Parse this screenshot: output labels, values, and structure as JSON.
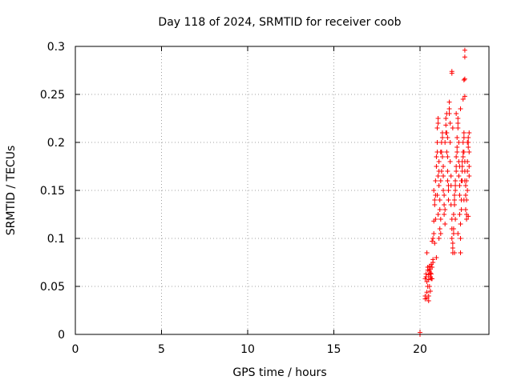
{
  "chart_data": {
    "type": "scatter",
    "title": "Day 118 of 2024, SRMTID for receiver coob",
    "xlabel": "GPS time / hours",
    "ylabel": "SRMTID / TECUs",
    "xlim": [
      0,
      24
    ],
    "ylim": [
      0,
      0.3
    ],
    "x_ticks": [
      0,
      5,
      10,
      15,
      20
    ],
    "x_tick_labels": [
      "0",
      "5",
      "10",
      "15",
      "20"
    ],
    "y_ticks": [
      0,
      0.05,
      0.1,
      0.15,
      0.2,
      0.25,
      0.3
    ],
    "y_tick_labels": [
      "0",
      "0.05",
      "0.1",
      "0.15",
      "0.2",
      "0.25",
      "0.3"
    ],
    "grid": true,
    "marker": "plus",
    "color": "#ff0000",
    "points": [
      [
        20.0,
        0.0
      ],
      [
        20.0,
        0.002
      ],
      [
        20.3,
        0.037
      ],
      [
        20.3,
        0.04
      ],
      [
        20.3,
        0.058
      ],
      [
        20.35,
        0.06
      ],
      [
        20.35,
        0.063
      ],
      [
        20.4,
        0.038
      ],
      [
        20.4,
        0.044
      ],
      [
        20.4,
        0.055
      ],
      [
        20.45,
        0.05
      ],
      [
        20.45,
        0.067
      ],
      [
        20.45,
        0.07
      ],
      [
        20.5,
        0.035
      ],
      [
        20.5,
        0.04
      ],
      [
        20.5,
        0.057
      ],
      [
        20.5,
        0.062
      ],
      [
        20.55,
        0.05
      ],
      [
        20.55,
        0.066
      ],
      [
        20.55,
        0.071
      ],
      [
        20.6,
        0.045
      ],
      [
        20.6,
        0.06
      ],
      [
        20.6,
        0.064
      ],
      [
        20.65,
        0.058
      ],
      [
        20.65,
        0.063
      ],
      [
        20.4,
        0.085
      ],
      [
        20.7,
        0.07
      ],
      [
        20.75,
        0.075
      ],
      [
        20.75,
        0.078
      ],
      [
        20.7,
        0.097
      ],
      [
        20.75,
        0.1
      ],
      [
        20.8,
        0.105
      ],
      [
        20.8,
        0.118
      ],
      [
        20.85,
        0.135
      ],
      [
        20.85,
        0.14
      ],
      [
        20.8,
        0.15
      ],
      [
        20.9,
        0.12
      ],
      [
        20.9,
        0.145
      ],
      [
        20.9,
        0.16
      ],
      [
        20.95,
        0.175
      ],
      [
        20.95,
        0.185
      ],
      [
        21.0,
        0.19
      ],
      [
        21.0,
        0.2
      ],
      [
        21.0,
        0.215
      ],
      [
        21.05,
        0.22
      ],
      [
        21.05,
        0.225
      ],
      [
        21.05,
        0.165
      ],
      [
        21.1,
        0.17
      ],
      [
        21.1,
        0.18
      ],
      [
        21.1,
        0.155
      ],
      [
        21.15,
        0.13
      ],
      [
        21.15,
        0.14
      ],
      [
        21.15,
        0.11
      ],
      [
        21.2,
        0.105
      ],
      [
        21.2,
        0.12
      ],
      [
        21.2,
        0.16
      ],
      [
        21.25,
        0.17
      ],
      [
        21.25,
        0.19
      ],
      [
        21.25,
        0.2
      ],
      [
        21.3,
        0.205
      ],
      [
        21.3,
        0.21
      ],
      [
        21.3,
        0.185
      ],
      [
        21.35,
        0.175
      ],
      [
        21.35,
        0.165
      ],
      [
        21.35,
        0.15
      ],
      [
        21.4,
        0.135
      ],
      [
        21.4,
        0.145
      ],
      [
        21.4,
        0.125
      ],
      [
        21.45,
        0.115
      ],
      [
        21.45,
        0.13
      ],
      [
        21.45,
        0.2
      ],
      [
        21.5,
        0.21
      ],
      [
        21.5,
        0.218
      ],
      [
        21.5,
        0.225
      ],
      [
        21.55,
        0.23
      ],
      [
        21.55,
        0.21
      ],
      [
        21.55,
        0.19
      ],
      [
        21.6,
        0.185
      ],
      [
        21.6,
        0.17
      ],
      [
        21.6,
        0.16
      ],
      [
        21.65,
        0.15
      ],
      [
        21.65,
        0.14
      ],
      [
        21.65,
        0.155
      ],
      [
        21.7,
        0.23
      ],
      [
        21.7,
        0.235
      ],
      [
        21.7,
        0.242
      ],
      [
        21.75,
        0.22
      ],
      [
        21.75,
        0.2
      ],
      [
        21.75,
        0.18
      ],
      [
        21.8,
        0.165
      ],
      [
        21.8,
        0.155
      ],
      [
        21.8,
        0.135
      ],
      [
        21.85,
        0.12
      ],
      [
        21.85,
        0.11
      ],
      [
        21.85,
        0.1
      ],
      [
        21.9,
        0.09
      ],
      [
        21.9,
        0.085
      ],
      [
        21.9,
        0.095
      ],
      [
        21.95,
        0.105
      ],
      [
        21.95,
        0.11
      ],
      [
        21.95,
        0.125
      ],
      [
        22.0,
        0.14
      ],
      [
        22.0,
        0.145
      ],
      [
        22.0,
        0.135
      ],
      [
        22.05,
        0.15
      ],
      [
        22.05,
        0.155
      ],
      [
        22.05,
        0.16
      ],
      [
        22.1,
        0.17
      ],
      [
        22.1,
        0.175
      ],
      [
        22.1,
        0.185
      ],
      [
        22.15,
        0.19
      ],
      [
        22.15,
        0.195
      ],
      [
        22.15,
        0.205
      ],
      [
        22.2,
        0.215
      ],
      [
        22.2,
        0.22
      ],
      [
        22.2,
        0.225
      ],
      [
        22.25,
        0.2
      ],
      [
        22.25,
        0.18
      ],
      [
        22.25,
        0.165
      ],
      [
        22.3,
        0.155
      ],
      [
        22.3,
        0.145
      ],
      [
        22.3,
        0.125
      ],
      [
        22.35,
        0.115
      ],
      [
        22.35,
        0.1
      ],
      [
        22.35,
        0.085
      ],
      [
        22.4,
        0.13
      ],
      [
        22.4,
        0.14
      ],
      [
        22.4,
        0.16
      ],
      [
        22.45,
        0.17
      ],
      [
        22.45,
        0.175
      ],
      [
        22.45,
        0.18
      ],
      [
        22.5,
        0.185
      ],
      [
        22.5,
        0.19
      ],
      [
        22.5,
        0.2
      ],
      [
        22.55,
        0.205
      ],
      [
        22.55,
        0.21
      ],
      [
        22.55,
        0.19
      ],
      [
        22.6,
        0.18
      ],
      [
        22.6,
        0.17
      ],
      [
        22.6,
        0.16
      ],
      [
        22.65,
        0.155
      ],
      [
        22.65,
        0.145
      ],
      [
        22.65,
        0.13
      ],
      [
        22.7,
        0.125
      ],
      [
        22.7,
        0.12
      ],
      [
        22.7,
        0.14
      ],
      [
        22.75,
        0.15
      ],
      [
        22.75,
        0.17
      ],
      [
        22.75,
        0.18
      ],
      [
        22.8,
        0.195
      ],
      [
        22.8,
        0.2
      ],
      [
        22.8,
        0.205
      ],
      [
        22.85,
        0.21
      ],
      [
        22.85,
        0.175
      ],
      [
        22.85,
        0.165
      ],
      [
        21.85,
        0.272
      ],
      [
        21.85,
        0.274
      ],
      [
        22.55,
        0.265
      ],
      [
        22.6,
        0.266
      ],
      [
        22.6,
        0.248
      ],
      [
        22.6,
        0.289
      ],
      [
        22.6,
        0.296
      ],
      [
        22.5,
        0.245
      ],
      [
        22.35,
        0.235
      ],
      [
        22.1,
        0.23
      ],
      [
        21.9,
        0.215
      ],
      [
        21.6,
        0.205
      ],
      [
        21.2,
        0.19
      ],
      [
        21.0,
        0.145
      ],
      [
        20.95,
        0.08
      ],
      [
        20.85,
        0.095
      ],
      [
        20.6,
        0.068
      ],
      [
        20.7,
        0.058
      ],
      [
        20.65,
        0.073
      ],
      [
        21.05,
        0.125
      ],
      [
        21.1,
        0.1
      ],
      [
        22.0,
        0.085
      ],
      [
        22.05,
        0.12
      ],
      [
        22.2,
        0.105
      ],
      [
        22.3,
        0.175
      ],
      [
        22.45,
        0.16
      ],
      [
        22.55,
        0.14
      ],
      [
        22.7,
        0.16
      ],
      [
        22.8,
        0.123
      ],
      [
        22.85,
        0.19
      ],
      [
        22.75,
        0.2
      ]
    ]
  }
}
